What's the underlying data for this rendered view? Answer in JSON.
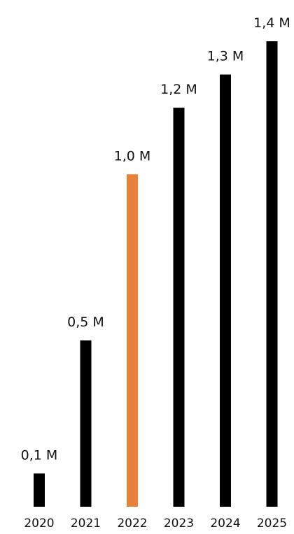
{
  "chart_data": {
    "type": "bar",
    "categories": [
      "2020",
      "2021",
      "2022",
      "2023",
      "2024",
      "2025"
    ],
    "values": [
      0.1,
      0.5,
      1.0,
      1.2,
      1.3,
      1.4
    ],
    "value_labels": [
      "0,1 M",
      "0,5 M",
      "1,0 M",
      "1,2 M",
      "1,3 M",
      "1,4 M"
    ],
    "highlight_category": "2022",
    "colors": {
      "bar": "#000000",
      "highlight": "#E8823A"
    },
    "title": "",
    "xlabel": "",
    "ylabel": "",
    "ylim": [
      0,
      1.4
    ],
    "grid": false,
    "legend": "none"
  }
}
